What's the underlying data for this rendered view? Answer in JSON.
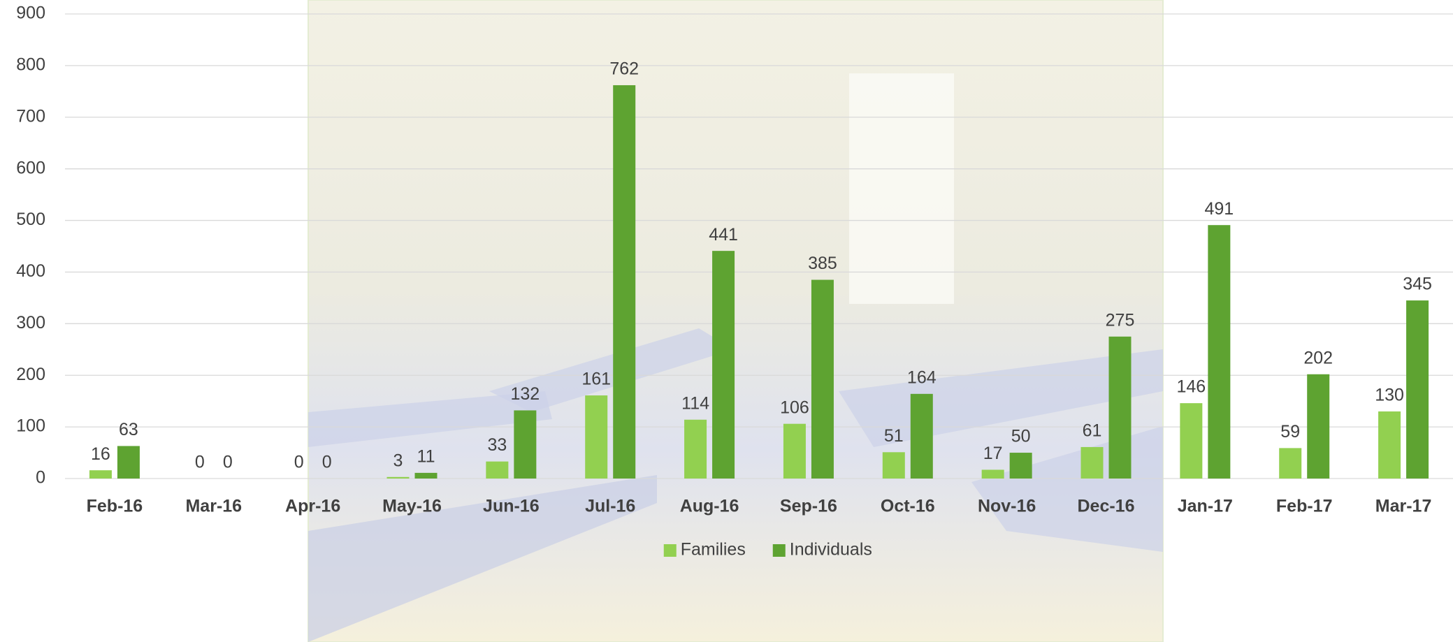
{
  "chart_data": {
    "type": "bar",
    "categories": [
      "Feb-16",
      "Mar-16",
      "Apr-16",
      "May-16",
      "Jun-16",
      "Jul-16",
      "Aug-16",
      "Sep-16",
      "Oct-16",
      "Nov-16",
      "Dec-16",
      "Jan-17",
      "Feb-17",
      "Mar-17"
    ],
    "series": [
      {
        "name": "Families",
        "color": "#92d050",
        "values": [
          16,
          0,
          0,
          3,
          33,
          161,
          114,
          106,
          51,
          17,
          61,
          146,
          59,
          130
        ]
      },
      {
        "name": "Individuals",
        "color": "#5ea331",
        "values": [
          63,
          0,
          0,
          11,
          132,
          762,
          441,
          385,
          164,
          50,
          275,
          491,
          202,
          345
        ]
      }
    ],
    "ylim": [
      0,
      900
    ],
    "yticks": [
      0,
      100,
      200,
      300,
      400,
      500,
      600,
      700,
      800,
      900
    ],
    "grid": true,
    "legend": "bottom"
  }
}
